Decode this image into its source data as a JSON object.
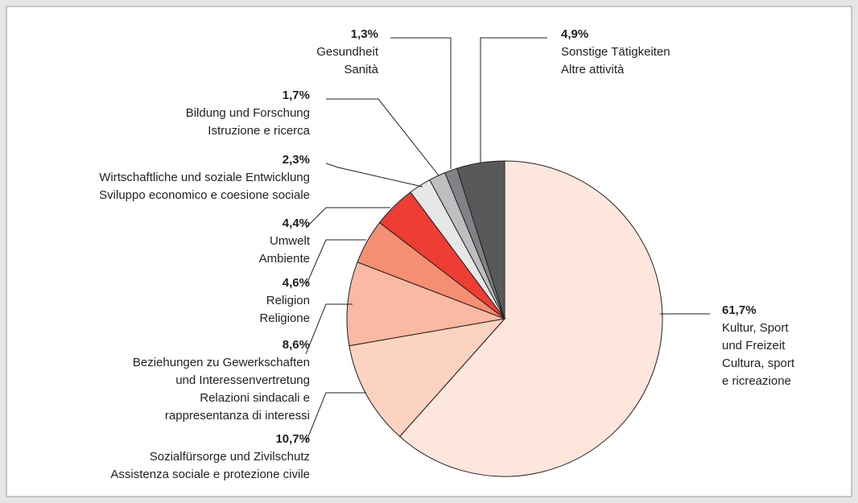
{
  "chart_data": {
    "type": "pie",
    "categories": [
      [
        "Kultur, Sport",
        "und Freizeit",
        "Cultura, sport",
        "e ricreazione"
      ],
      [
        "Sozialfürsorge und Zivilschutz",
        "Assistenza sociale e protezione civile"
      ],
      [
        "Beziehungen zu Gewerkschaften",
        "und Interessenvertretung",
        "Relazioni sindacali e",
        "rappresentanza di interessi"
      ],
      [
        "Religion",
        "Religione"
      ],
      [
        "Umwelt",
        "Ambiente"
      ],
      [
        "Wirtschaftliche und soziale Entwicklung",
        "Sviluppo economico e coesione sociale"
      ],
      [
        "Bildung und Forschung",
        "Istruzione e ricerca"
      ],
      [
        "Gesundheit",
        "Sanità"
      ],
      [
        "Sonstige Tätigkeiten",
        "Altre attività"
      ]
    ],
    "values": [
      61.7,
      10.7,
      8.6,
      4.6,
      4.4,
      2.3,
      1.7,
      1.3,
      4.9
    ],
    "value_labels": [
      "61,7%",
      "10,7%",
      "8,6%",
      "4,6%",
      "4,4%",
      "2,3%",
      "1,7%",
      "1,3%",
      "4,9%"
    ],
    "colors": [
      "#fde6dc",
      "#fcd3c1",
      "#fbb9a4",
      "#f58f72",
      "#ee3d33",
      "#e6e7e8",
      "#bcbec0",
      "#808285",
      "#58595b"
    ]
  }
}
